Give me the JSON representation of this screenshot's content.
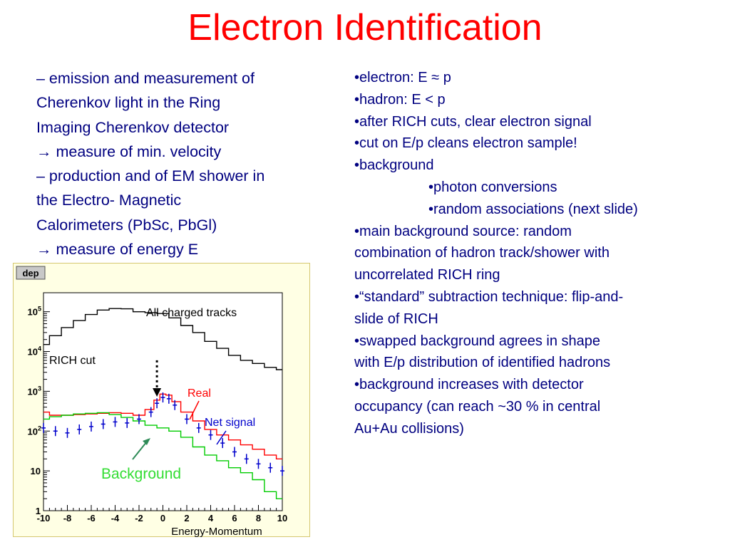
{
  "title": "Electron Identification",
  "left_lines": [
    "– emission and measurement of",
    "Cherenkov light in the Ring",
    "Imaging Cherenkov detector",
    "→ measure of min. velocity",
    "– production and of EM shower in",
    "the Electro- Magnetic",
    "Calorimeters (PbSc, PbGl)",
    "→ measure of energy E"
  ],
  "right_lines": [
    "•electron: E ≈ p",
    "•hadron: E < p",
    "•after RICH cuts, clear electron signal",
    "•cut on E/p cleans electron sample!",
    "•background",
    "•photon conversions",
    "•random associations (next slide)",
    "•main background source: random",
    "combination of hadron track/shower with",
    "uncorrelated RICH ring",
    "•“standard” subtraction technique: flip-and-",
    "slide of RICH",
    "•swapped background agrees in shape",
    "with E/p distribution of identified hadrons",
    "•background increases with detector",
    "occupancy (can reach ~30 % in central",
    "Au+Au collisions)"
  ],
  "colors": {
    "title": "#ff0000",
    "text": "#000080",
    "all_tracks": "#000000",
    "real": "#ff0000",
    "background": "#00cc00",
    "net_signal": "#0000cc",
    "background_label": "#33dd33",
    "arrow_green": "#2e8b57"
  },
  "chart_data": {
    "type": "line",
    "hist_name": "dep",
    "xlabel": "Energy-Momentum",
    "ylabel": "",
    "xlim": [
      -10,
      10
    ],
    "ylim": [
      1,
      300000
    ],
    "y_scale": "log",
    "x_ticks": [
      "-10",
      "-8",
      "-6",
      "-4",
      "-2",
      "0",
      "2",
      "4",
      "6",
      "8",
      "10"
    ],
    "y_ticks": [
      {
        "base": "1",
        "exp": ""
      },
      {
        "base": "10",
        "exp": ""
      },
      {
        "base": "10",
        "exp": "2"
      },
      {
        "base": "10",
        "exp": "3"
      },
      {
        "base": "10",
        "exp": "4"
      },
      {
        "base": "10",
        "exp": "5"
      }
    ],
    "series": [
      {
        "name": "All charged tracks",
        "x": [
          -10,
          -9,
          -8,
          -7,
          -6,
          -5,
          -4,
          -3,
          -2,
          -1,
          0,
          1,
          2,
          3,
          4,
          5,
          6,
          7,
          8,
          9,
          10
        ],
        "values": [
          15000,
          25000,
          40000,
          60000,
          85000,
          110000,
          120000,
          118000,
          100000,
          95000,
          90000,
          70000,
          45000,
          30000,
          18000,
          12000,
          8000,
          6000,
          5000,
          4000,
          3500
        ]
      },
      {
        "name": "Real",
        "x": [
          -10,
          -9,
          -8,
          -7,
          -6,
          -5,
          -4,
          -3,
          -2,
          -1,
          -0.5,
          0,
          0.5,
          1,
          2,
          3,
          4,
          5,
          6,
          7,
          8,
          9,
          10
        ],
        "values": [
          300,
          250,
          250,
          260,
          270,
          280,
          290,
          280,
          250,
          350,
          600,
          850,
          800,
          550,
          300,
          180,
          110,
          80,
          60,
          45,
          35,
          25,
          20
        ]
      },
      {
        "name": "Background",
        "x": [
          -10,
          -9,
          -8,
          -7,
          -6,
          -5,
          -4,
          -3,
          -2,
          -1,
          0,
          1,
          2,
          3,
          4,
          5,
          6,
          7,
          8,
          9,
          10
        ],
        "values": [
          200,
          230,
          250,
          270,
          280,
          290,
          260,
          220,
          180,
          140,
          120,
          100,
          70,
          40,
          25,
          18,
          12,
          9,
          6,
          3,
          2
        ]
      },
      {
        "name": "Net signal",
        "x": [
          -10,
          -9,
          -8,
          -7,
          -6,
          -5,
          -4,
          -3,
          -2,
          -1,
          -0.5,
          0,
          0.5,
          1,
          2,
          3,
          4,
          5,
          6,
          7,
          8,
          9,
          10
        ],
        "values": [
          120,
          100,
          90,
          110,
          130,
          150,
          170,
          160,
          200,
          300,
          500,
          700,
          650,
          450,
          200,
          120,
          80,
          50,
          30,
          20,
          15,
          12,
          10
        ]
      }
    ],
    "annotations": [
      {
        "text": "All charged tracks"
      },
      {
        "text": "RICH cut"
      },
      {
        "text": "Real"
      },
      {
        "text": "Net signal"
      },
      {
        "text": "Background"
      }
    ]
  }
}
